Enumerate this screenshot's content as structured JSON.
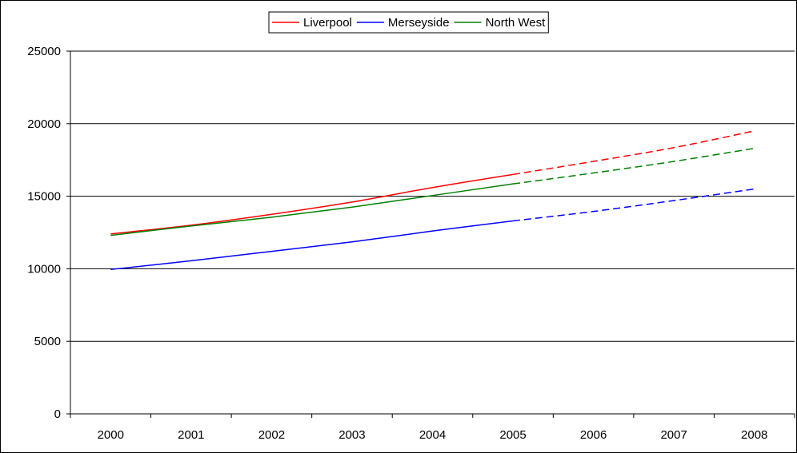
{
  "chart_data": {
    "type": "line",
    "title": "",
    "xlabel": "",
    "ylabel": "",
    "x": [
      2000,
      2001,
      2002,
      2003,
      2004,
      2005,
      2006,
      2007,
      2008
    ],
    "ylim": [
      0,
      25000
    ],
    "yticks": [
      0,
      5000,
      10000,
      15000,
      20000,
      25000
    ],
    "grid": true,
    "legend_position": "top-center",
    "series": [
      {
        "name": "Liverpool",
        "color": "#ff0000",
        "values": [
          12400,
          13000,
          13750,
          14600,
          15600,
          16500,
          17400,
          18350,
          19500
        ],
        "solid_until_index": 5
      },
      {
        "name": "Merseyside",
        "color": "#0000ff",
        "values": [
          9950,
          10550,
          11200,
          11850,
          12600,
          13300,
          13950,
          14700,
          15500
        ],
        "solid_until_index": 5
      },
      {
        "name": "North West",
        "color": "#008000",
        "values": [
          12300,
          12950,
          13550,
          14250,
          15050,
          15850,
          16600,
          17400,
          18300
        ],
        "solid_until_index": 5
      }
    ]
  }
}
